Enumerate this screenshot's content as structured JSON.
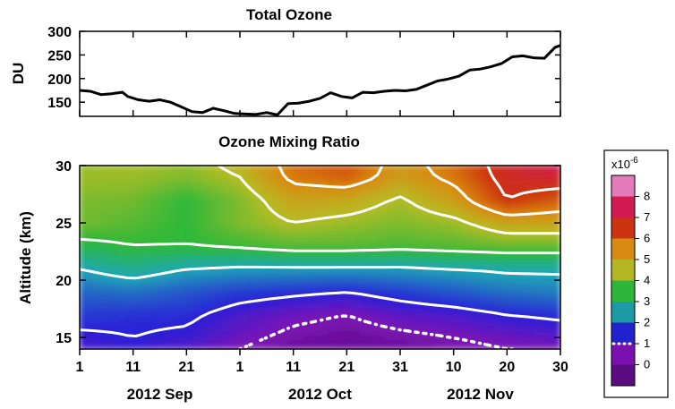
{
  "chart_data": [
    {
      "type": "line",
      "title": "Total Ozone",
      "ylabel": "DU",
      "ylim": [
        120,
        300
      ],
      "yticks": [
        150,
        200,
        250,
        300
      ],
      "x_unit": "day index from 2012 Sep 1",
      "xlim": [
        0,
        90
      ],
      "series": [
        {
          "values_x": [
            0,
            2,
            4,
            6,
            8,
            9,
            11,
            13,
            15,
            17,
            19,
            21,
            23,
            25,
            27,
            29,
            31,
            33,
            35,
            37,
            39,
            41,
            43,
            45,
            47,
            49,
            51,
            53,
            55,
            57,
            59,
            61,
            63,
            65,
            67,
            69,
            71,
            73,
            75,
            77,
            79,
            81,
            83,
            85,
            87,
            89,
            90
          ],
          "values_y": [
            175,
            173,
            166,
            168,
            171,
            162,
            155,
            152,
            155,
            150,
            140,
            130,
            128,
            137,
            132,
            126,
            125,
            124,
            128,
            123,
            147,
            148,
            152,
            158,
            170,
            162,
            159,
            171,
            170,
            173,
            175,
            174,
            177,
            186,
            195,
            199,
            205,
            218,
            220,
            225,
            232,
            246,
            248,
            244,
            243,
            266,
            270
          ]
        }
      ]
    },
    {
      "type": "heatmap",
      "title": "Ozone Mixing Ratio",
      "ylabel": "Altitude (km)",
      "ylim": [
        14,
        30
      ],
      "yticks": [
        15,
        20,
        25,
        30
      ],
      "xlim": [
        0,
        90
      ],
      "x_tick_labels": [
        "1",
        "11",
        "21",
        "1",
        "11",
        "21",
        "31",
        "10",
        "20",
        "30"
      ],
      "month_labels": [
        "2012 Sep",
        "2012 Oct",
        "2012 Nov"
      ],
      "colorbar": {
        "exponent_label": "x10",
        "exponent_sup": "-6",
        "ticks": [
          "8",
          "7",
          "6",
          "5",
          "4",
          "3",
          "2",
          "1",
          "0"
        ],
        "colors": [
          "#e57ab8",
          "#d21b52",
          "#cc3311",
          "#d98a10",
          "#b4b623",
          "#2fb53a",
          "#1e9aa4",
          "#2222cc",
          "#7a10b0",
          "#5a0c80"
        ]
      },
      "values_x": [
        0,
        10,
        20,
        30,
        40,
        50,
        60,
        70,
        80,
        90
      ],
      "values_y": [
        14,
        15,
        17,
        19,
        21,
        23,
        25,
        27,
        29,
        30
      ],
      "z": [
        [
          0.8,
          0.9,
          0.7,
          0.5,
          0.3,
          0.3,
          0.3,
          0.4,
          0.5,
          0.5
        ],
        [
          0.9,
          1.0,
          0.9,
          0.6,
          0.4,
          0.3,
          0.4,
          0.5,
          0.6,
          0.7
        ],
        [
          1.2,
          1.1,
          1.1,
          0.8,
          0.6,
          0.5,
          0.7,
          0.8,
          1.0,
          1.1
        ],
        [
          1.5,
          1.6,
          1.4,
          1.2,
          1.1,
          1.0,
          1.2,
          1.4,
          1.6,
          1.7
        ],
        [
          2.0,
          2.3,
          2.0,
          1.9,
          1.9,
          1.9,
          1.9,
          2.0,
          2.1,
          2.1
        ],
        [
          2.8,
          3.0,
          3.0,
          3.1,
          3.3,
          3.3,
          3.2,
          3.3,
          3.4,
          3.4
        ],
        [
          3.5,
          3.3,
          3.0,
          3.6,
          4.0,
          3.8,
          3.6,
          3.8,
          4.5,
          4.5
        ],
        [
          3.6,
          3.5,
          3.0,
          3.6,
          4.5,
          4.4,
          3.9,
          4.6,
          6.0,
          5.5
        ],
        [
          3.8,
          3.8,
          3.6,
          4.0,
          5.2,
          5.5,
          4.6,
          5.2,
          6.3,
          6.5
        ],
        [
          3.8,
          3.9,
          3.7,
          4.2,
          5.3,
          5.6,
          4.7,
          5.3,
          6.4,
          7.0
        ]
      ],
      "contour_levels": [
        1,
        2,
        3,
        4,
        5,
        6
      ],
      "dotted_contour_level": 0.5
    }
  ]
}
